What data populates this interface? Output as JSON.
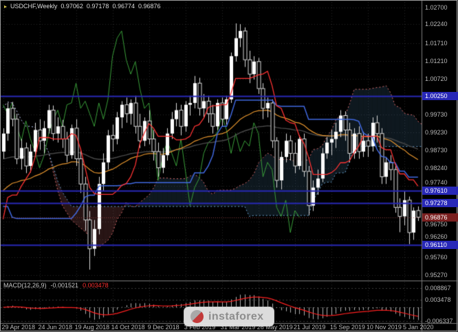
{
  "title": {
    "symbol_period": "USDCHF,Weekly",
    "open": "0.97062",
    "high": "0.97178",
    "low": "0.96774",
    "close": "0.96876"
  },
  "watermark": {
    "text": "instaforex"
  },
  "colors": {
    "background": "#000000",
    "grid": "#272727",
    "axis_text": "#b8b8b8",
    "bull_candle": "#ffffff",
    "bear_candle": "#000000",
    "candle_outline": "#dcdcdc",
    "tenkan": "#ff3333",
    "kijun": "#4169e1",
    "senkou_a": "#e07070",
    "senkou_b": "#6fa8d8",
    "cloud_bull": "rgba(100,170,220,0.14)",
    "cloud_bear": "rgba(250,130,130,0.16)",
    "chikou": "#3aa03a",
    "ema_fast": "#e8962e",
    "ema_slow": "#4a4a4a",
    "level_line": "#2828b8",
    "current_badge": "#7a2020",
    "current_line": "#8a3b3b",
    "macd_main": "#b0b0b0",
    "macd_signal": "#ff2020",
    "separator": "#7d7d7d"
  },
  "price_axis": {
    "ticks": [
      {
        "label": "1.02700",
        "price": 1.027
      },
      {
        "label": "1.02240",
        "price": 1.0224
      },
      {
        "label": "1.01710",
        "price": 1.0171
      },
      {
        "label": "1.01210",
        "price": 1.0121
      },
      {
        "label": "1.00720",
        "price": 1.0072
      },
      {
        "label": "0.99730",
        "price": 0.9973
      },
      {
        "label": "0.99230",
        "price": 0.9923
      },
      {
        "label": "0.98730",
        "price": 0.9873
      },
      {
        "label": "0.98240",
        "price": 0.9824
      },
      {
        "label": "0.97740",
        "price": 0.9774
      },
      {
        "label": "0.96750",
        "price": 0.9675
      },
      {
        "label": "0.96260",
        "price": 0.9626
      },
      {
        "label": "0.95760",
        "price": 0.9576
      },
      {
        "label": "0.95270",
        "price": 0.9527
      }
    ],
    "levels": [
      {
        "label": "1.00250",
        "price": 1.0025
      },
      {
        "label": "0.97610",
        "price": 0.9761
      },
      {
        "label": "0.97278",
        "price": 0.97278
      },
      {
        "label": "0.96110",
        "price": 0.9611
      }
    ],
    "current": {
      "label": "0.96876",
      "price": 0.96876
    }
  },
  "time_axis": {
    "labels": [
      {
        "text": "29 Apr 2018",
        "index": 0
      },
      {
        "text": "24 Jun 2018",
        "index": 8
      },
      {
        "text": "19 Aug 2018",
        "index": 16
      },
      {
        "text": "14 Oct 2018",
        "index": 24
      },
      {
        "text": "9 Dec 2018",
        "index": 32
      },
      {
        "text": "3 Feb 2019",
        "index": 40
      },
      {
        "text": "31 Mar 2019",
        "index": 48
      },
      {
        "text": "26 May 2019",
        "index": 56
      },
      {
        "text": "21 Jul 2019",
        "index": 64
      },
      {
        "text": "15 Sep 2019",
        "index": 72
      },
      {
        "text": "10 Nov 2019",
        "index": 80
      },
      {
        "text": "5 Jan 2020",
        "index": 88
      }
    ]
  },
  "macd": {
    "name": "MACD(12,26,9)",
    "main_value": "-0.001521",
    "signal_value": "0.003478",
    "fast": 12,
    "slow": 26,
    "signal": 9,
    "axis": [
      {
        "label": "0.008867",
        "value": 0.008867
      },
      {
        "label": "0.003478",
        "value": 0.003478
      },
      {
        "label": "-0.006337",
        "value": -0.006337
      }
    ]
  },
  "chart_data": {
    "type": "candlestick",
    "title": "USDCHF,Weekly",
    "timeframe": "W1",
    "y_range": [
      0.9527,
      1.027
    ],
    "macd_range": [
      -0.006337,
      0.008867
    ],
    "indicators": {
      "ichimoku": {
        "tenkan": 9,
        "kijun": 26,
        "senkou_b": 52,
        "shift": 26
      },
      "ema_fast_period": 40,
      "ema_slow_period": 80,
      "macd": {
        "fast": 12,
        "slow": 26,
        "signal": 9
      }
    },
    "pre_open_first": 0.998,
    "history_seed_closes": [
      1.0005,
      1.0035,
      0.9975,
      0.993,
      0.988,
      0.9845,
      0.9885,
      0.984,
      0.9795,
      0.9755,
      0.97,
      0.962,
      0.954,
      0.948,
      0.944,
      0.94,
      0.943,
      0.947,
      0.952,
      0.956,
      0.953,
      0.958,
      0.962,
      0.966,
      0.974,
      0.986
    ],
    "ohlc": [
      [
        0.987,
        0.9935,
        0.985,
        0.992
      ],
      [
        0.992,
        1.0005,
        0.99,
        0.999
      ],
      [
        0.999,
        1.0008,
        0.994,
        0.996
      ],
      [
        0.996,
        0.9975,
        0.9835,
        0.985
      ],
      [
        0.985,
        0.9905,
        0.982,
        0.988
      ],
      [
        0.988,
        0.9895,
        0.981,
        0.983
      ],
      [
        0.983,
        0.989,
        0.9812,
        0.987
      ],
      [
        0.987,
        0.995,
        0.9855,
        0.993
      ],
      [
        0.993,
        0.996,
        0.9875,
        0.99
      ],
      [
        0.99,
        0.9955,
        0.9865,
        0.9935
      ],
      [
        0.9935,
        1.0,
        0.992,
        0.9985
      ],
      [
        0.9985,
        0.9998,
        0.99,
        0.992
      ],
      [
        0.992,
        0.9965,
        0.9895,
        0.994
      ],
      [
        0.994,
        0.9958,
        0.988,
        0.9905
      ],
      [
        0.9905,
        0.9925,
        0.984,
        0.986
      ],
      [
        0.986,
        0.9945,
        0.985,
        0.9935
      ],
      [
        0.9935,
        0.996,
        0.983,
        0.985
      ],
      [
        0.985,
        0.9875,
        0.9755,
        0.978
      ],
      [
        0.978,
        0.98,
        0.965,
        0.968
      ],
      [
        0.968,
        0.9705,
        0.9542,
        0.96
      ],
      [
        0.96,
        0.968,
        0.958,
        0.9655
      ],
      [
        0.9655,
        0.98,
        0.964,
        0.978
      ],
      [
        0.978,
        0.9865,
        0.976,
        0.984
      ],
      [
        0.984,
        0.993,
        0.982,
        0.9915
      ],
      [
        0.9915,
        0.9945,
        0.987,
        0.9905
      ],
      [
        0.9905,
        0.998,
        0.989,
        0.9965
      ],
      [
        0.9965,
        1.001,
        0.9935,
        1.0
      ],
      [
        1.0,
        1.002,
        0.995,
        0.9975
      ],
      [
        0.9975,
        1.0015,
        0.9945,
        1.0005
      ],
      [
        1.0005,
        1.0025,
        0.992,
        0.994
      ],
      [
        0.994,
        0.9975,
        0.988,
        0.99
      ],
      [
        0.99,
        0.9965,
        0.9885,
        0.9955
      ],
      [
        0.9955,
        0.9985,
        0.989,
        0.9905
      ],
      [
        0.9905,
        0.993,
        0.9845,
        0.987
      ],
      [
        0.987,
        0.9895,
        0.98,
        0.9825
      ],
      [
        0.9825,
        0.988,
        0.981,
        0.986
      ],
      [
        0.986,
        0.9935,
        0.9845,
        0.992
      ],
      [
        0.992,
        0.998,
        0.9905,
        0.996
      ],
      [
        0.996,
        1.0005,
        0.994,
        0.9985
      ],
      [
        0.9985,
        1.0,
        0.9915,
        0.994
      ],
      [
        0.994,
        1.001,
        0.9925,
        1.0
      ],
      [
        1.0,
        1.0025,
        0.997,
        1.0005
      ],
      [
        1.0005,
        1.008,
        0.999,
        1.006
      ],
      [
        1.006,
        1.0075,
        0.997,
        0.999
      ],
      [
        0.999,
        1.003,
        0.9965,
        1.001
      ],
      [
        1.001,
        1.0025,
        0.995,
        0.9975
      ],
      [
        0.9975,
        1.0,
        0.992,
        0.994
      ],
      [
        0.994,
        1.0015,
        0.993,
        1.0005
      ],
      [
        1.0005,
        1.002,
        0.994,
        0.996
      ],
      [
        0.996,
        1.0025,
        0.9945,
        1.0015
      ],
      [
        1.0015,
        1.0145,
        1.0005,
        1.0135
      ],
      [
        1.0135,
        1.0226,
        1.012,
        1.0185
      ],
      [
        1.0185,
        1.0224,
        1.016,
        1.0205
      ],
      [
        1.0205,
        1.0215,
        1.0105,
        1.0125
      ],
      [
        1.0125,
        1.015,
        1.006,
        1.0085
      ],
      [
        1.0085,
        1.0135,
        1.007,
        1.012
      ],
      [
        1.012,
        1.013,
        1.003,
        1.0045
      ],
      [
        1.0045,
        1.006,
        0.996,
        0.999
      ],
      [
        0.999,
        1.002,
        0.9965,
        1.0005
      ],
      [
        1.0005,
        1.0015,
        0.988,
        0.99
      ],
      [
        0.99,
        0.991,
        0.977,
        0.979
      ],
      [
        0.979,
        0.987,
        0.9765,
        0.9855
      ],
      [
        0.9855,
        0.992,
        0.984,
        0.99
      ],
      [
        0.99,
        0.9915,
        0.9845,
        0.9865
      ],
      [
        0.9865,
        0.9895,
        0.981,
        0.983
      ],
      [
        0.983,
        0.9915,
        0.982,
        0.9905
      ],
      [
        0.9905,
        0.992,
        0.98,
        0.9815
      ],
      [
        0.9815,
        0.983,
        0.9693,
        0.972
      ],
      [
        0.972,
        0.979,
        0.9705,
        0.977
      ],
      [
        0.977,
        0.982,
        0.975,
        0.9795
      ],
      [
        0.9795,
        0.988,
        0.9785,
        0.9865
      ],
      [
        0.9865,
        0.991,
        0.985,
        0.9895
      ],
      [
        0.9895,
        0.993,
        0.986,
        0.9905
      ],
      [
        0.9905,
        0.995,
        0.988,
        0.9925
      ],
      [
        0.9925,
        0.9985,
        0.991,
        0.997
      ],
      [
        0.997,
        0.9982,
        0.99,
        0.993
      ],
      [
        0.993,
        0.995,
        0.984,
        0.9865
      ],
      [
        0.9865,
        0.9935,
        0.985,
        0.992
      ],
      [
        0.992,
        0.994,
        0.985,
        0.987
      ],
      [
        0.987,
        0.9925,
        0.9855,
        0.99
      ],
      [
        0.99,
        0.992,
        0.9855,
        0.9885
      ],
      [
        0.9885,
        0.9965,
        0.987,
        0.995
      ],
      [
        0.995,
        0.997,
        0.9895,
        0.992
      ],
      [
        0.992,
        0.9935,
        0.978,
        0.98
      ],
      [
        0.98,
        0.9855,
        0.978,
        0.984
      ],
      [
        0.984,
        0.986,
        0.979,
        0.982
      ],
      [
        0.982,
        0.9835,
        0.97,
        0.9715
      ],
      [
        0.9715,
        0.974,
        0.9646,
        0.969
      ],
      [
        0.969,
        0.976,
        0.9665,
        0.9735
      ],
      [
        0.9735,
        0.9745,
        0.9613,
        0.9645
      ],
      [
        0.9645,
        0.9715,
        0.9625,
        0.9706
      ],
      [
        0.97062,
        0.97178,
        0.96774,
        0.96876
      ]
    ]
  }
}
